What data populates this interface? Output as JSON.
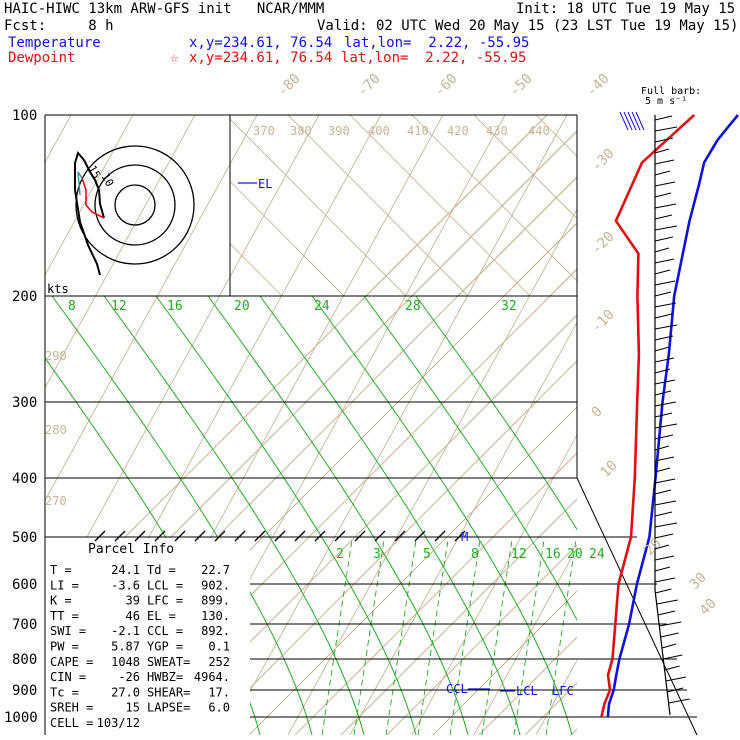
{
  "header": {
    "line1_left": "HAIC-HIWC 13km ARW-GFS init   NCAR/MMM",
    "line1_right": "Init: 18 UTC Tue 19 May 15",
    "line2_left": "Fcst:     8 h",
    "line2_right": "Valid: 02 UTC Wed 20 May 15 (23 LST Tue 19 May 15)",
    "temp_label": "Temperature",
    "temp_xy": "x,y=234.61, 76.54",
    "temp_latlon": "lat,lon=  2.22, -55.95",
    "dew_label": "Dewpoint",
    "dew_marker": "☆",
    "dew_xy": "x,y=234.61, 76.54",
    "dew_latlon": "lat,lon=  2.22, -55.95"
  },
  "barb_legend": {
    "line1": "Full barb:",
    "line2": "5 m s⁻¹"
  },
  "hodograph": {
    "units": "kts",
    "ring1": "10",
    "ring2": "15"
  },
  "parcel_info": {
    "title": "Parcel Info",
    "rows": [
      {
        "l": "T   =",
        "lv": "24.1",
        "r": "Td  =",
        "rv": "22.7"
      },
      {
        "l": "LI  =",
        "lv": "-3.6",
        "r": "LCL =",
        "rv": "902."
      },
      {
        "l": "K   =",
        "lv": "39",
        "r": "LFC =",
        "rv": "899."
      },
      {
        "l": "TT  =",
        "lv": "46",
        "r": "EL  =",
        "rv": "130."
      },
      {
        "l": "SWI =",
        "lv": "-2.1",
        "r": "CCL =",
        "rv": "892."
      },
      {
        "l": "PW  =",
        "lv": "5.87",
        "r": "YGP =",
        "rv": "0.1"
      },
      {
        "l": "CAPE =",
        "lv": "1048",
        "r": "SWEAT=",
        "rv": "252"
      },
      {
        "l": "CIN  =",
        "lv": "-26",
        "r": "HWBZ=",
        "rv": "4964."
      },
      {
        "l": "Tc  =",
        "lv": "27.0",
        "r": "SHEAR=",
        "rv": "17."
      },
      {
        "l": "SREH =",
        "lv": "15",
        "r": "LAPSE=",
        "rv": "6.0"
      },
      {
        "l": "CELL =",
        "lv": "103/12",
        "r": "",
        "rv": ""
      }
    ]
  },
  "colors": {
    "temperature": "#1010e0",
    "dewpoint": "#e01010",
    "isotherm": "#c8b496",
    "mixing_ratio": "#22aa22",
    "isobar": "#000000"
  },
  "chart_data": {
    "type": "line",
    "pressure_levels": [
      100,
      200,
      300,
      400,
      500,
      600,
      700,
      800,
      900,
      1000
    ],
    "isotherm_labels": [
      "-80",
      "-70",
      "-60",
      "-50",
      "-40",
      "-30",
      "-20",
      "-10",
      "0",
      "10",
      "20",
      "30",
      "40"
    ],
    "theta_labels": [
      "370",
      "380",
      "390",
      "400",
      "410",
      "420",
      "430",
      "440",
      "290",
      "280",
      "270"
    ],
    "mixing_ratio_labels": [
      "8",
      "12",
      "16",
      "20",
      "24",
      "28",
      "32",
      "2",
      "3",
      "5",
      "8",
      "12",
      "16",
      "20",
      "24"
    ],
    "level_markers": [
      "EL",
      "CCL",
      "LCL",
      "LFC",
      "M"
    ],
    "series": [
      {
        "name": "Temperature",
        "points": [
          [
            1000,
            24.1
          ],
          [
            950,
            21.5
          ],
          [
            900,
            19.5
          ],
          [
            850,
            16.8
          ],
          [
            800,
            14.0
          ],
          [
            700,
            8.5
          ],
          [
            600,
            1.5
          ],
          [
            500,
            -6.0
          ],
          [
            400,
            -17.5
          ],
          [
            300,
            -32.5
          ],
          [
            250,
            -41.5
          ],
          [
            200,
            -53.0
          ],
          [
            150,
            -66.0
          ],
          [
            130,
            -72.0
          ],
          [
            120,
            -75.5
          ],
          [
            110,
            -77.5
          ],
          [
            100,
            -78.5
          ]
        ]
      },
      {
        "name": "Dewpoint",
        "points": [
          [
            1000,
            22.7
          ],
          [
            950,
            20.5
          ],
          [
            900,
            18.7
          ],
          [
            850,
            15.0
          ],
          [
            800,
            12.5
          ],
          [
            700,
            5.5
          ],
          [
            600,
            -2.5
          ],
          [
            500,
            -10.0
          ],
          [
            400,
            -22.0
          ],
          [
            300,
            -38.0
          ],
          [
            250,
            -48.0
          ],
          [
            200,
            -61.0
          ],
          [
            170,
            -70.0
          ],
          [
            150,
            -82.0
          ],
          [
            120,
            -89.0
          ],
          [
            100,
            -88.0
          ]
        ]
      }
    ]
  }
}
